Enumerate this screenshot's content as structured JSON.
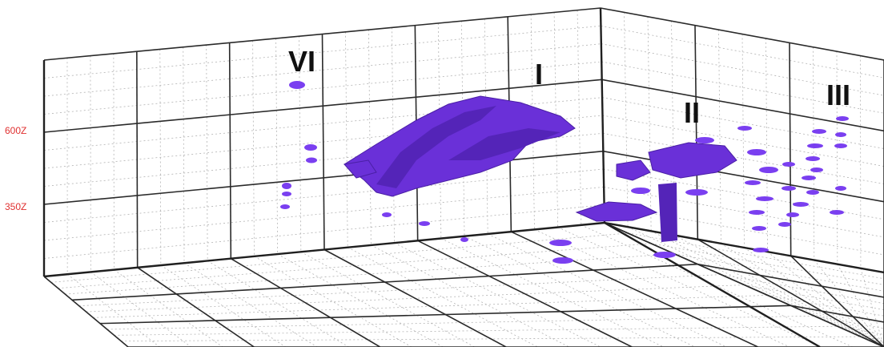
{
  "zones": {
    "vi": "VI",
    "i": "I",
    "ii": "II",
    "iii": "III"
  },
  "axis": {
    "tick_upper": "600Z",
    "tick_lower": "350Z"
  },
  "colors": {
    "anomaly": "#7a3ff0",
    "anomaly_dark": "#5424b8",
    "axis_label": "#e03030",
    "grid_major": "#2a2a2a",
    "grid_minor": "#b3b3b3"
  }
}
